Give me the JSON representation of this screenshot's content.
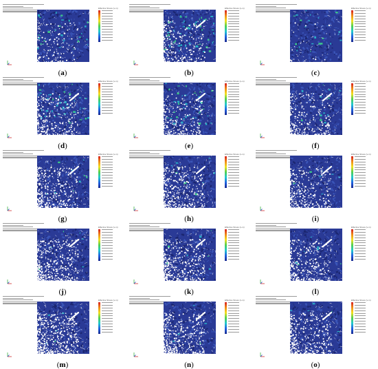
{
  "legend_title": "Effective Stress (v-m)",
  "panels": [
    {
      "label": "a",
      "speckle": 0.35,
      "voids": 0.2
    },
    {
      "label": "b",
      "speckle": 0.55,
      "voids": 0.35
    },
    {
      "label": "c",
      "speckle": 0.25,
      "voids": 0.05
    },
    {
      "label": "d",
      "speckle": 0.5,
      "voids": 0.45
    },
    {
      "label": "e",
      "speckle": 0.45,
      "voids": 0.35
    },
    {
      "label": "f",
      "speckle": 0.15,
      "voids": 0.45
    },
    {
      "label": "g",
      "speckle": 0.1,
      "voids": 0.55
    },
    {
      "label": "h",
      "speckle": 0.1,
      "voids": 0.6
    },
    {
      "label": "i",
      "speckle": 0.08,
      "voids": 0.5
    },
    {
      "label": "j",
      "speckle": 0.08,
      "voids": 0.7
    },
    {
      "label": "k",
      "speckle": 0.08,
      "voids": 0.6
    },
    {
      "label": "l",
      "speckle": 0.08,
      "voids": 0.55
    },
    {
      "label": "m",
      "speckle": 0.06,
      "voids": 0.8
    },
    {
      "label": "n",
      "speckle": 0.06,
      "voids": 0.65
    },
    {
      "label": "o",
      "speckle": 0.06,
      "voids": 0.6
    }
  ],
  "colors": {
    "background": "#ffffff",
    "field_base": "#2a3a96",
    "field_dark": "#1b2670",
    "field_mid": "#3a55b8",
    "speckle_cyan": "#2ab0c8",
    "speckle_green": "#3cc88a",
    "caption": "#000000"
  }
}
